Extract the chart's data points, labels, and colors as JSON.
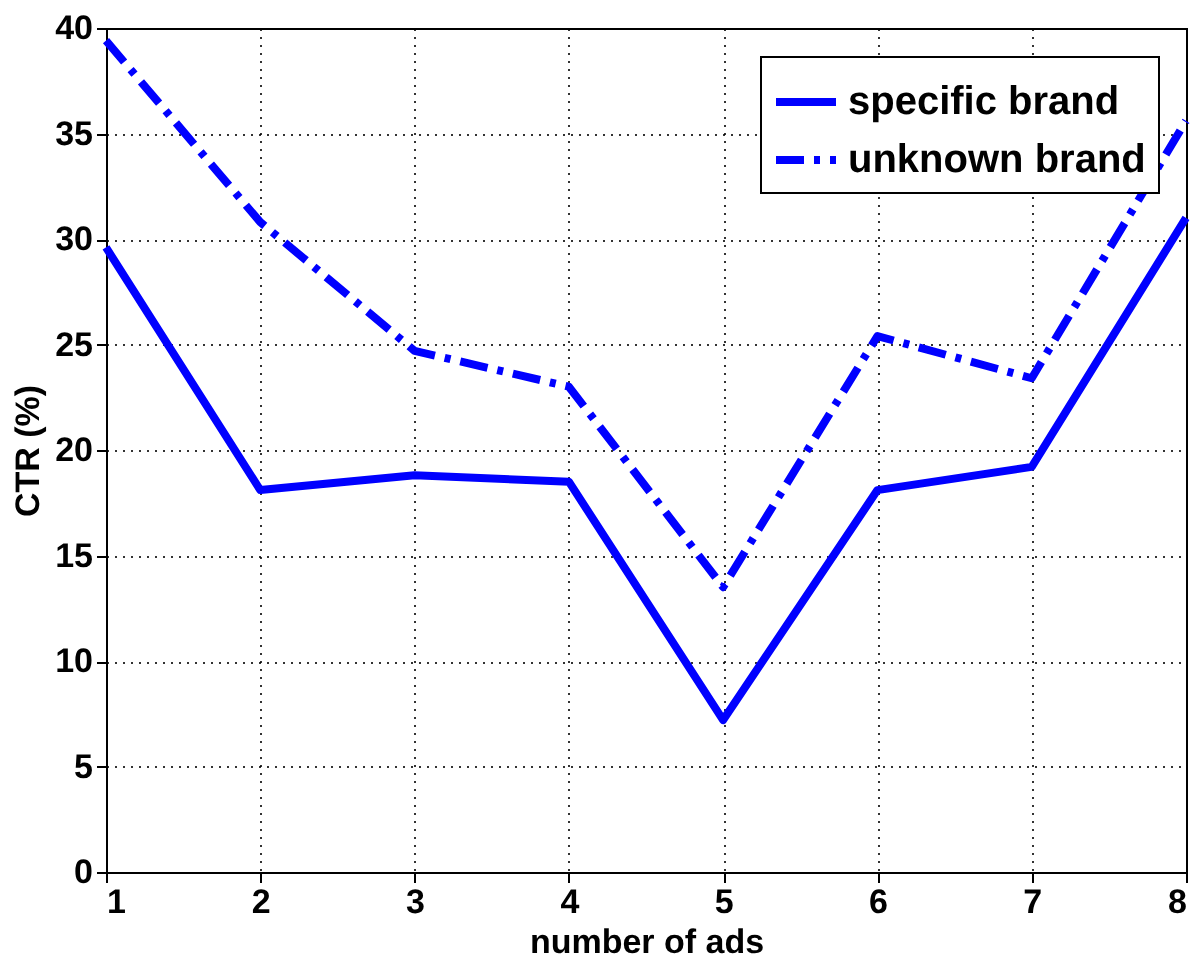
{
  "chart_data": {
    "type": "line",
    "xlabel": "number of ads",
    "ylabel": "CTR (%)",
    "x": [
      1,
      2,
      3,
      4,
      5,
      6,
      7,
      8
    ],
    "series": [
      {
        "name": "specific brand",
        "color": "#0000ff",
        "line_style": "solid",
        "values": [
          29.6,
          18.1,
          18.8,
          18.5,
          7.2,
          18.1,
          19.2,
          31.0
        ]
      },
      {
        "name": "unknown brand",
        "color": "#0000ff",
        "line_style": "dashed",
        "values": [
          39.4,
          30.8,
          24.7,
          23.0,
          13.5,
          25.4,
          23.4,
          35.6
        ]
      }
    ],
    "xlim": [
      1,
      8
    ],
    "xticks": [
      1,
      2,
      3,
      4,
      5,
      6,
      7,
      8
    ],
    "ylim": [
      0,
      40
    ],
    "yticks": [
      0,
      5,
      10,
      15,
      20,
      25,
      30,
      35,
      40
    ],
    "grid": true,
    "legend": "top right",
    "marker": "none"
  }
}
